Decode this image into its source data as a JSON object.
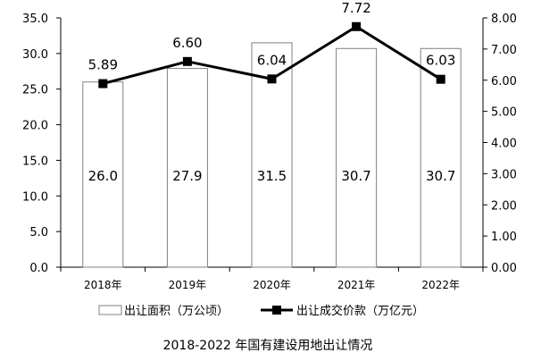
{
  "chart_data": {
    "type": "bar+line",
    "title": "2018-2022 年国有建设用地出让情况",
    "categories": [
      "2018年",
      "2019年",
      "2020年",
      "2021年",
      "2022年"
    ],
    "series": [
      {
        "name": "出让面积（万公顷）",
        "type": "bar",
        "axis": "left",
        "values": [
          26.0,
          27.9,
          31.5,
          30.7,
          30.7
        ],
        "labels": [
          "26.0",
          "27.9",
          "31.5",
          "30.7",
          "30.7"
        ]
      },
      {
        "name": "出让成交价款（万亿元）",
        "type": "line",
        "axis": "right",
        "values": [
          5.89,
          6.6,
          6.04,
          7.72,
          6.03
        ],
        "labels": [
          "5.89",
          "6.60",
          "6.04",
          "7.72",
          "6.03"
        ]
      }
    ],
    "y_left": {
      "ylim": [
        0,
        35
      ],
      "ticks": [
        "0.0",
        "5.0",
        "10.0",
        "15.0",
        "20.0",
        "25.0",
        "30.0",
        "35.0"
      ]
    },
    "y_right": {
      "ylim": [
        0,
        8
      ],
      "ticks": [
        "0.00",
        "1.00",
        "2.00",
        "3.00",
        "4.00",
        "5.00",
        "6.00",
        "7.00",
        "8.00"
      ]
    },
    "grid": false,
    "legend": "bottom",
    "colors": {
      "bar_fill": "#ffffff",
      "bar_stroke": "#808080",
      "line": "#000000",
      "marker": "#000000",
      "axis": "#000000"
    }
  }
}
